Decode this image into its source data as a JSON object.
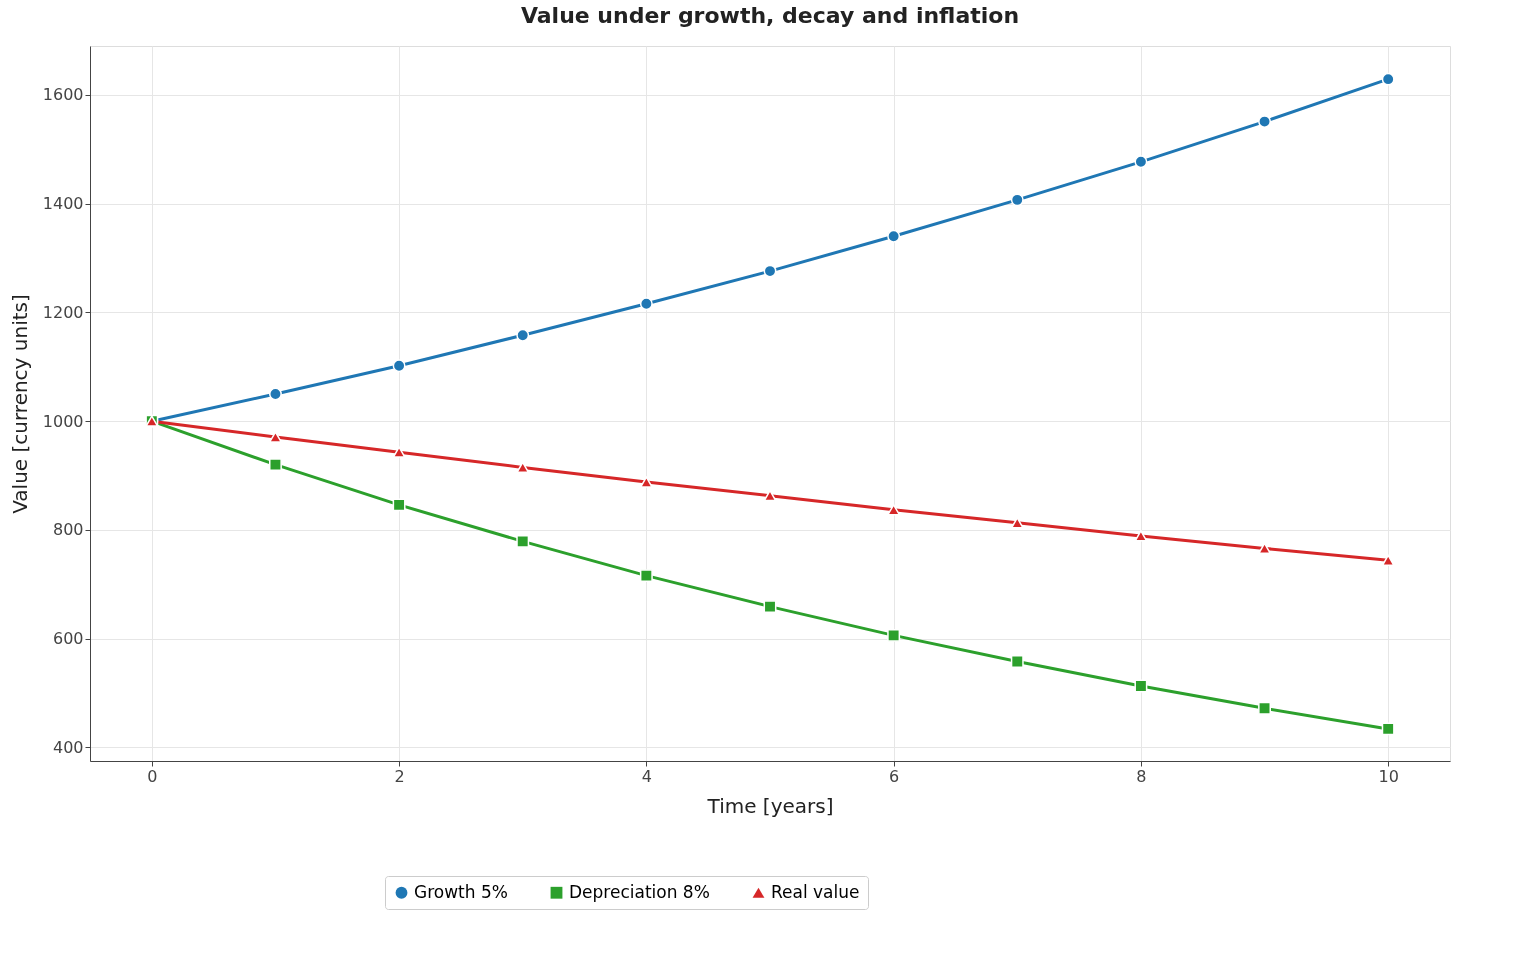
{
  "chart_data": {
    "type": "line",
    "title": "Value under growth, decay and inflation",
    "xlabel": "Time [years]",
    "ylabel": "Value [currency units]",
    "x": [
      0,
      1,
      2,
      3,
      4,
      5,
      6,
      7,
      8,
      9,
      10
    ],
    "series": [
      {
        "name": "Growth 5%",
        "color": "#1f77b4",
        "marker": "circle",
        "values": [
          1000,
          1050,
          1102,
          1158,
          1216,
          1276,
          1340,
          1407,
          1477,
          1551,
          1629
        ]
      },
      {
        "name": "Depreciation 8%",
        "color": "#2ca02c",
        "marker": "square",
        "values": [
          1000,
          920,
          846,
          779,
          716,
          659,
          606,
          558,
          513,
          472,
          434
        ]
      },
      {
        "name": "Real value",
        "color": "#d62728",
        "marker": "triangle",
        "values": [
          1000,
          971,
          943,
          915,
          888,
          863,
          837,
          813,
          789,
          766,
          744
        ]
      }
    ],
    "xlim": [
      -0.5,
      10.5
    ],
    "ylim": [
      375,
      1690
    ],
    "xticks": [
      0,
      2,
      4,
      6,
      8,
      10
    ],
    "yticks": [
      400,
      600,
      800,
      1000,
      1200,
      1400,
      1600
    ],
    "grid": true,
    "legend": "bottom",
    "line_style": "solid"
  }
}
